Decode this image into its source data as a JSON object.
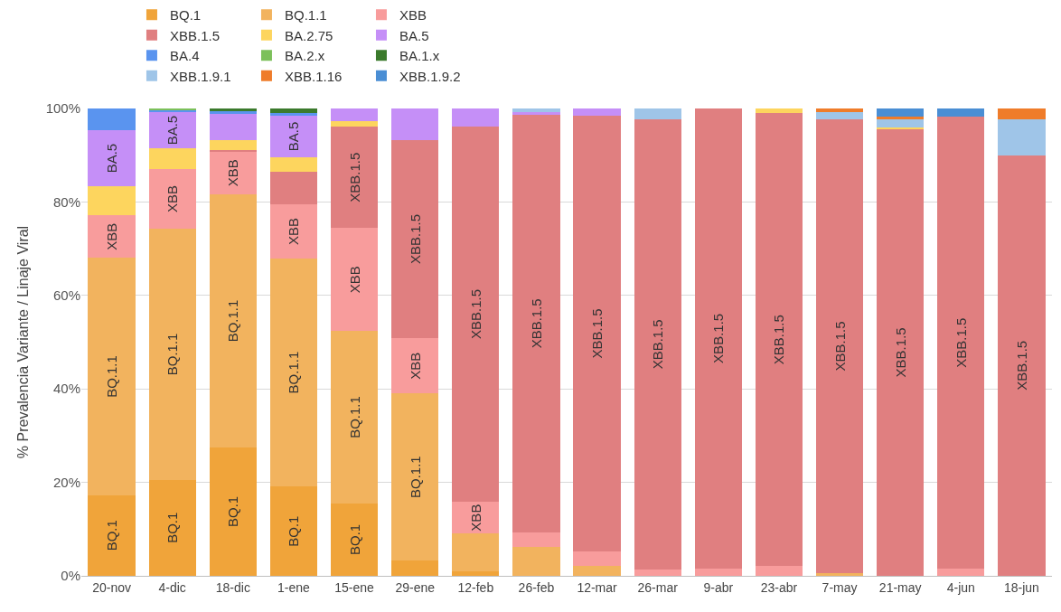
{
  "chart_data": {
    "type": "bar",
    "stacked": true,
    "ylabel": "% Prevalencia Variante / Linaje Viral",
    "categories": [
      "20-nov",
      "4-dic",
      "18-dic",
      "1-ene",
      "15-ene",
      "29-ene",
      "12-feb",
      "26-feb",
      "12-mar",
      "26-mar",
      "9-abr",
      "23-abr",
      "7-may",
      "21-may",
      "4-jun",
      "18-jun"
    ],
    "ylim": [
      0,
      100
    ],
    "yticks": [
      {
        "value": 0,
        "label": "0%"
      },
      {
        "value": 20,
        "label": "20%"
      },
      {
        "value": 40,
        "label": "40%"
      },
      {
        "value": 60,
        "label": "60%"
      },
      {
        "value": 80,
        "label": "80%"
      },
      {
        "value": 100,
        "label": "100%"
      }
    ],
    "grid": "y",
    "legend": "top",
    "series": [
      {
        "name": "BQ.1",
        "color": "#f0a43a",
        "values": [
          17.3,
          20.6,
          27.5,
          19.1,
          15.5,
          3.3,
          0.9,
          0,
          0,
          0,
          0,
          0,
          0,
          0,
          0,
          0
        ],
        "value_labels": [
          "BQ.1",
          "BQ.1",
          "BQ.1",
          "BQ.1",
          "BQ.1",
          null,
          null,
          null,
          null,
          null,
          null,
          null,
          null,
          null,
          null,
          null
        ]
      },
      {
        "name": "BQ.1.1",
        "color": "#f2b35e",
        "values": [
          50.7,
          53.6,
          54.1,
          48.8,
          36.9,
          35.7,
          8.2,
          6.1,
          2.2,
          0,
          0,
          0,
          0.6,
          0,
          0,
          0
        ],
        "value_labels": [
          "BQ.1.1",
          "BQ.1.1",
          "BQ.1.1",
          "BQ.1.1",
          "BQ.1.1",
          "BQ.1.1",
          null,
          null,
          null,
          null,
          null,
          null,
          null,
          null,
          null,
          null
        ]
      },
      {
        "name": "XBB",
        "color": "#f89c9c",
        "values": [
          9.2,
          12.9,
          9.2,
          11.6,
          22.0,
          11.8,
          6.7,
          3.2,
          3.1,
          1.4,
          1.6,
          2.1,
          0,
          0,
          1.5,
          0
        ],
        "value_labels": [
          "XBB",
          "XBB",
          "XBB",
          "XBB",
          "XBB",
          "XBB",
          "XBB",
          null,
          null,
          null,
          null,
          null,
          null,
          null,
          null,
          null
        ]
      },
      {
        "name": "XBB.1.5",
        "color": "#e07f80",
        "values": [
          0,
          0,
          0.4,
          6.9,
          21.7,
          42.5,
          80.4,
          89.4,
          93.1,
          96.3,
          98.4,
          96.9,
          97.1,
          95.6,
          96.7,
          90.0
        ],
        "value_labels": [
          null,
          null,
          null,
          null,
          "XBB.1.5",
          "XBB.1.5",
          "XBB.1.5",
          "XBB.1.5",
          "XBB.1.5",
          "XBB.1.5",
          "XBB.1.5",
          "XBB.1.5",
          "XBB.1.5",
          "XBB.1.5",
          "XBB.1.5",
          "XBB.1.5"
        ]
      },
      {
        "name": "BA.2.75",
        "color": "#fdd55e",
        "values": [
          6.2,
          4.4,
          2.1,
          3.2,
          1.1,
          0,
          0,
          0,
          0,
          0,
          0,
          1.0,
          0,
          0.4,
          0,
          0
        ]
      },
      {
        "name": "BA.5",
        "color": "#c58ff7",
        "values": [
          11.9,
          7.7,
          5.6,
          8.8,
          2.8,
          6.7,
          3.8,
          0.6,
          1.6,
          0,
          0,
          0,
          0,
          0,
          0,
          0
        ],
        "value_labels": [
          "BA.5",
          "BA.5",
          null,
          "BA.5",
          null,
          null,
          null,
          null,
          null,
          null,
          null,
          null,
          null,
          null,
          null,
          null
        ]
      },
      {
        "name": "BA.4",
        "color": "#5a94ef",
        "values": [
          4.7,
          0.5,
          0.6,
          0.6,
          0,
          0,
          0,
          0,
          0,
          0,
          0,
          0,
          0,
          0,
          0,
          0
        ]
      },
      {
        "name": "BA.2.x",
        "color": "#7cc05a",
        "values": [
          0,
          0.3,
          0,
          0,
          0,
          0,
          0,
          0,
          0,
          0,
          0,
          0,
          0,
          0,
          0,
          0
        ]
      },
      {
        "name": "BA.1.x",
        "color": "#3b7a2c",
        "values": [
          0,
          0,
          0.5,
          1.0,
          0,
          0,
          0,
          0,
          0,
          0,
          0,
          0,
          0,
          0,
          0,
          0
        ]
      },
      {
        "name": "XBB.1.9.1",
        "color": "#9fc5e8",
        "values": [
          0,
          0,
          0,
          0,
          0,
          0,
          0,
          0.7,
          0,
          2.3,
          0,
          0,
          1.5,
          1.7,
          0,
          7.6
        ]
      },
      {
        "name": "XBB.1.16",
        "color": "#ef7c2a",
        "values": [
          0,
          0,
          0,
          0,
          0,
          0,
          0,
          0,
          0,
          0,
          0,
          0,
          0.8,
          0.5,
          0,
          2.4
        ]
      },
      {
        "name": "XBB.1.9.2",
        "color": "#4a8ed4",
        "values": [
          0,
          0,
          0,
          0,
          0,
          0,
          0,
          0,
          0,
          0,
          0,
          0,
          0,
          1.8,
          1.8,
          0
        ]
      }
    ]
  }
}
